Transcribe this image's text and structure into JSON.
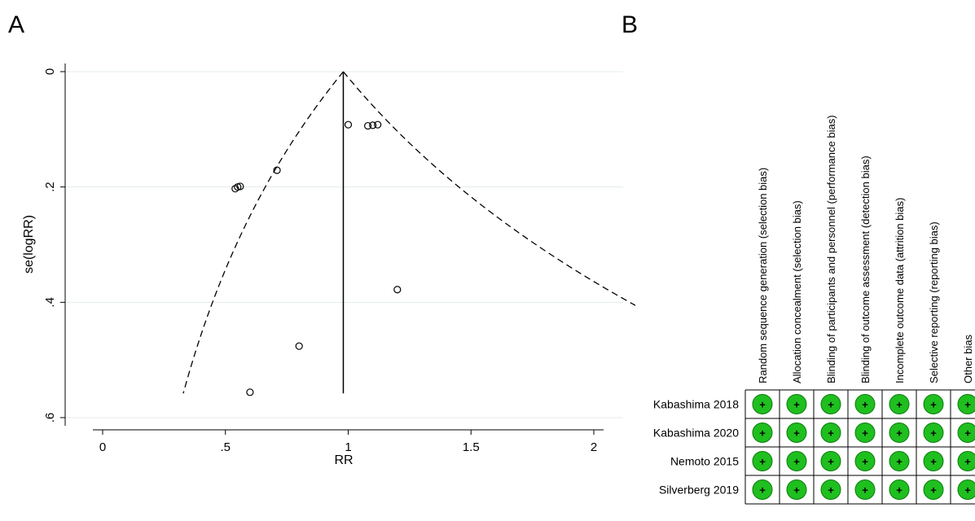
{
  "panels": {
    "a": "A",
    "b": "B"
  },
  "chart_data": [
    {
      "type": "scatter",
      "title": "",
      "xlabel": "RR",
      "ylabel": "se(logRR)",
      "x_ticks": [
        0,
        0.5,
        1,
        1.5,
        2
      ],
      "x_tick_labels": [
        "0",
        ".5",
        "1",
        "1.5",
        "2"
      ],
      "y_ticks": [
        0,
        0.2,
        0.4,
        0.6
      ],
      "y_tick_labels": [
        "0",
        ".2",
        ".4",
        ".6"
      ],
      "xlim": [
        -0.15,
        2.12
      ],
      "ylim": [
        0,
        0.6
      ],
      "y_reversed": true,
      "grid": "horizontal",
      "pooled_estimate": 0.98,
      "funnel_max_se": 0.558,
      "points": [
        {
          "x": 1.0,
          "y": 0.092
        },
        {
          "x": 1.08,
          "y": 0.094
        },
        {
          "x": 1.1,
          "y": 0.093
        },
        {
          "x": 1.12,
          "y": 0.092
        },
        {
          "x": 0.71,
          "y": 0.171
        },
        {
          "x": 0.54,
          "y": 0.203
        },
        {
          "x": 0.55,
          "y": 0.2
        },
        {
          "x": 0.56,
          "y": 0.199
        },
        {
          "x": 1.2,
          "y": 0.378
        },
        {
          "x": 0.8,
          "y": 0.476
        },
        {
          "x": 0.6,
          "y": 0.556
        }
      ]
    },
    {
      "type": "table",
      "columns": [
        "Random sequence generation (selection bias)",
        "Allocation concealment (selection bias)",
        "Blinding of participants and personnel (performance bias)",
        "Blinding of outcome assessment (detection bias)",
        "Incomplete outcome data (attrition bias)",
        "Selective reporting (reporting bias)",
        "Other bias"
      ],
      "rows": [
        "Kabashima 2018",
        "Kabashima 2020",
        "Nemoto 2015",
        "Silverberg 2019"
      ],
      "cells": [
        [
          "+",
          "+",
          "+",
          "+",
          "+",
          "+",
          "+"
        ],
        [
          "+",
          "+",
          "+",
          "+",
          "+",
          "+",
          "+"
        ],
        [
          "+",
          "+",
          "+",
          "+",
          "+",
          "+",
          "+"
        ],
        [
          "+",
          "+",
          "+",
          "+",
          "+",
          "+",
          "+"
        ]
      ],
      "low_risk_color": "#1fbf1f"
    }
  ]
}
